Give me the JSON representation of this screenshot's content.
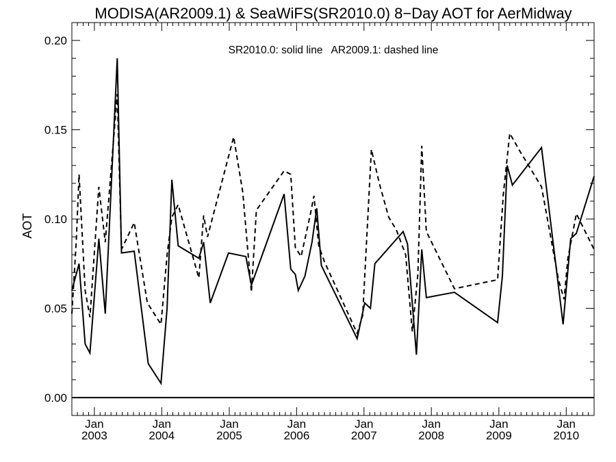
{
  "chart_data": {
    "type": "line",
    "title": "MODISA(AR2009.1) & SeaWiFS(SR2010.0) 8−Day AOT for AerMidway",
    "ylabel": "AOT",
    "annotation": "SR2010.0: solid line   AR2009.1: dashed line",
    "ylim": [
      -0.01,
      0.21
    ],
    "xlim": [
      "2002-09-01",
      "2010-06-01"
    ],
    "grid": false,
    "y_ticks": [
      {
        "value": 0.0,
        "label": "0.00"
      },
      {
        "value": 0.05,
        "label": "0.05"
      },
      {
        "value": 0.1,
        "label": "0.10"
      },
      {
        "value": 0.15,
        "label": "0.15"
      },
      {
        "value": 0.2,
        "label": "0.20"
      }
    ],
    "x_ticks": [
      {
        "date": "2003-01-01",
        "month": "Jan",
        "year": "2003"
      },
      {
        "date": "2004-01-01",
        "month": "Jan",
        "year": "2004"
      },
      {
        "date": "2005-01-01",
        "month": "Jan",
        "year": "2005"
      },
      {
        "date": "2006-01-01",
        "month": "Jan",
        "year": "2006"
      },
      {
        "date": "2007-01-01",
        "month": "Jan",
        "year": "2007"
      },
      {
        "date": "2008-01-01",
        "month": "Jan",
        "year": "2008"
      },
      {
        "date": "2009-01-01",
        "month": "Jan",
        "year": "2009"
      },
      {
        "date": "2010-01-01",
        "month": "Jan",
        "year": "2010"
      }
    ],
    "reference_line": {
      "y": 0.0
    },
    "series": [
      {
        "name": "SR2010.0",
        "style": "solid",
        "points": [
          [
            "2002-09-01",
            0.06
          ],
          [
            "2002-10-10",
            0.075
          ],
          [
            "2002-11-12",
            0.03
          ],
          [
            "2002-12-08",
            0.025
          ],
          [
            "2003-01-25",
            0.089
          ],
          [
            "2003-03-01",
            0.047
          ],
          [
            "2003-05-05",
            0.19
          ],
          [
            "2003-05-28",
            0.081
          ],
          [
            "2003-08-05",
            0.082
          ],
          [
            "2003-10-20",
            0.019
          ],
          [
            "2003-12-28",
            0.008
          ],
          [
            "2004-01-30",
            0.05
          ],
          [
            "2004-02-25",
            0.122
          ],
          [
            "2004-03-30",
            0.085
          ],
          [
            "2004-07-20",
            0.078
          ],
          [
            "2004-08-15",
            0.087
          ],
          [
            "2004-09-20",
            0.053
          ],
          [
            "2004-12-28",
            0.081
          ],
          [
            "2005-04-01",
            0.079
          ],
          [
            "2005-05-01",
            0.063
          ],
          [
            "2005-10-25",
            0.114
          ],
          [
            "2005-11-30",
            0.072
          ],
          [
            "2005-12-25",
            0.069
          ],
          [
            "2006-01-10",
            0.06
          ],
          [
            "2006-02-15",
            0.068
          ],
          [
            "2006-03-25",
            0.087
          ],
          [
            "2006-04-20",
            0.106
          ],
          [
            "2006-05-15",
            0.074
          ],
          [
            "2006-11-25",
            0.033
          ],
          [
            "2007-01-05",
            0.053
          ],
          [
            "2007-02-05",
            0.05
          ],
          [
            "2007-03-01",
            0.075
          ],
          [
            "2007-08-01",
            0.093
          ],
          [
            "2007-08-25",
            0.086
          ],
          [
            "2007-10-12",
            0.024
          ],
          [
            "2007-11-10",
            0.083
          ],
          [
            "2007-12-05",
            0.056
          ],
          [
            "2008-05-05",
            0.059
          ],
          [
            "2008-12-25",
            0.042
          ],
          [
            "2009-01-20",
            0.068
          ],
          [
            "2009-02-15",
            0.13
          ],
          [
            "2009-03-15",
            0.119
          ],
          [
            "2009-08-20",
            0.14
          ],
          [
            "2009-12-15",
            0.041
          ],
          [
            "2010-01-25",
            0.089
          ],
          [
            "2010-02-25",
            0.092
          ],
          [
            "2010-06-01",
            0.124
          ]
        ]
      },
      {
        "name": "AR2009.1",
        "style": "dashed",
        "points": [
          [
            "2002-09-01",
            0.047
          ],
          [
            "2002-09-25",
            0.088
          ],
          [
            "2002-10-10",
            0.125
          ],
          [
            "2002-11-12",
            0.06
          ],
          [
            "2002-12-08",
            0.045
          ],
          [
            "2003-01-25",
            0.118
          ],
          [
            "2003-03-01",
            0.087
          ],
          [
            "2003-05-05",
            0.17
          ],
          [
            "2003-05-28",
            0.083
          ],
          [
            "2003-08-05",
            0.098
          ],
          [
            "2003-10-15",
            0.053
          ],
          [
            "2003-12-28",
            0.041
          ],
          [
            "2004-01-30",
            0.08
          ],
          [
            "2004-02-25",
            0.101
          ],
          [
            "2004-03-30",
            0.108
          ],
          [
            "2004-07-20",
            0.067
          ],
          [
            "2004-08-15",
            0.102
          ],
          [
            "2004-09-05",
            0.09
          ],
          [
            "2005-01-25",
            0.146
          ],
          [
            "2005-03-15",
            0.115
          ],
          [
            "2005-05-01",
            0.059
          ],
          [
            "2005-05-28",
            0.105
          ],
          [
            "2005-10-25",
            0.127
          ],
          [
            "2005-11-30",
            0.125
          ],
          [
            "2005-12-25",
            0.084
          ],
          [
            "2006-01-25",
            0.079
          ],
          [
            "2006-03-15",
            0.102
          ],
          [
            "2006-04-05",
            0.113
          ],
          [
            "2006-05-01",
            0.085
          ],
          [
            "2006-06-01",
            0.076
          ],
          [
            "2006-11-25",
            0.036
          ],
          [
            "2006-12-25",
            0.046
          ],
          [
            "2007-02-10",
            0.139
          ],
          [
            "2007-03-25",
            0.12
          ],
          [
            "2007-05-15",
            0.101
          ],
          [
            "2007-06-25",
            0.094
          ],
          [
            "2007-08-15",
            0.08
          ],
          [
            "2007-09-20",
            0.037
          ],
          [
            "2007-10-20",
            0.069
          ],
          [
            "2007-11-10",
            0.141
          ],
          [
            "2007-12-05",
            0.093
          ],
          [
            "2008-05-05",
            0.061
          ],
          [
            "2008-12-25",
            0.066
          ],
          [
            "2009-01-25",
            0.114
          ],
          [
            "2009-03-01",
            0.148
          ],
          [
            "2009-04-25",
            0.138
          ],
          [
            "2009-08-20",
            0.118
          ],
          [
            "2009-11-20",
            0.066
          ],
          [
            "2009-12-20",
            0.055
          ],
          [
            "2010-01-10",
            0.078
          ],
          [
            "2010-02-25",
            0.103
          ],
          [
            "2010-06-01",
            0.083
          ]
        ]
      }
    ]
  }
}
